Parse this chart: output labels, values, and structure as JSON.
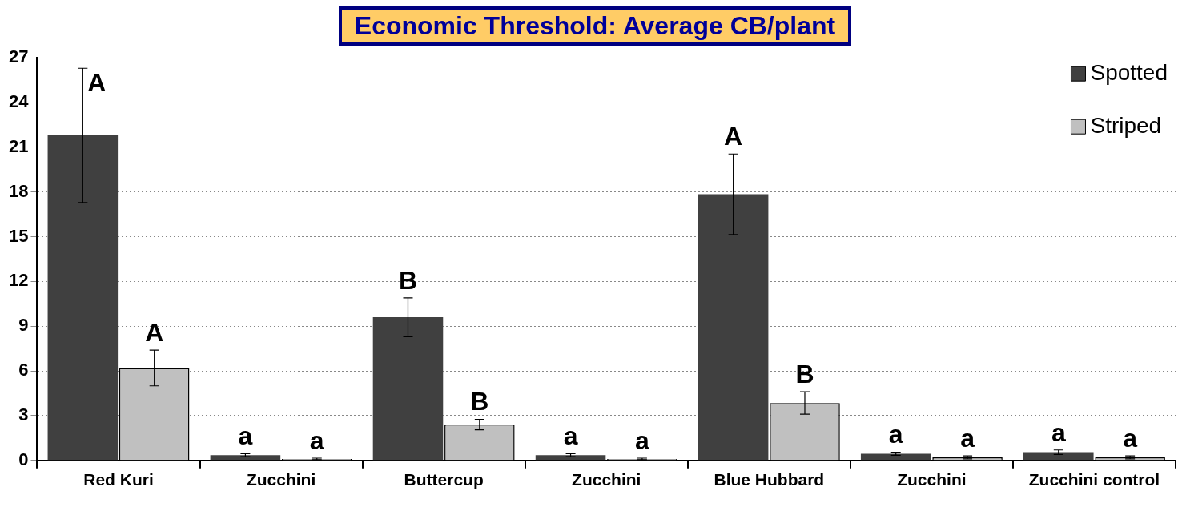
{
  "chart_data": {
    "type": "bar",
    "title": "Economic Threshold: Average CB/plant",
    "categories": [
      "Red Kuri",
      "Zucchini",
      "Buttercup",
      "Zucchini",
      "Blue Hubbard",
      "Zucchini",
      "Zucchini control"
    ],
    "series": [
      {
        "name": "Spotted",
        "color": "#404040",
        "values": [
          21.8,
          0.35,
          9.6,
          0.35,
          17.85,
          0.45,
          0.55
        ],
        "errors": [
          4.5,
          0.1,
          1.3,
          0.1,
          2.7,
          0.1,
          0.15
        ],
        "value_labels": [
          "A",
          "a",
          "B",
          "a",
          "A",
          "a",
          "a"
        ]
      },
      {
        "name": "Striped",
        "color": "#c0c0c0",
        "values": [
          6.2,
          0.1,
          2.4,
          0.1,
          3.85,
          0.2,
          0.2
        ],
        "errors": [
          1.2,
          0.05,
          0.35,
          0.05,
          0.75,
          0.1,
          0.1
        ],
        "value_labels": [
          "A",
          "a",
          "B",
          "a",
          "B",
          "a",
          "a"
        ]
      }
    ],
    "ylim": [
      0,
      27
    ],
    "yticks": [
      0,
      3,
      6,
      9,
      12,
      15,
      18,
      21,
      24,
      27
    ],
    "grid": "y",
    "legend": "top right"
  }
}
